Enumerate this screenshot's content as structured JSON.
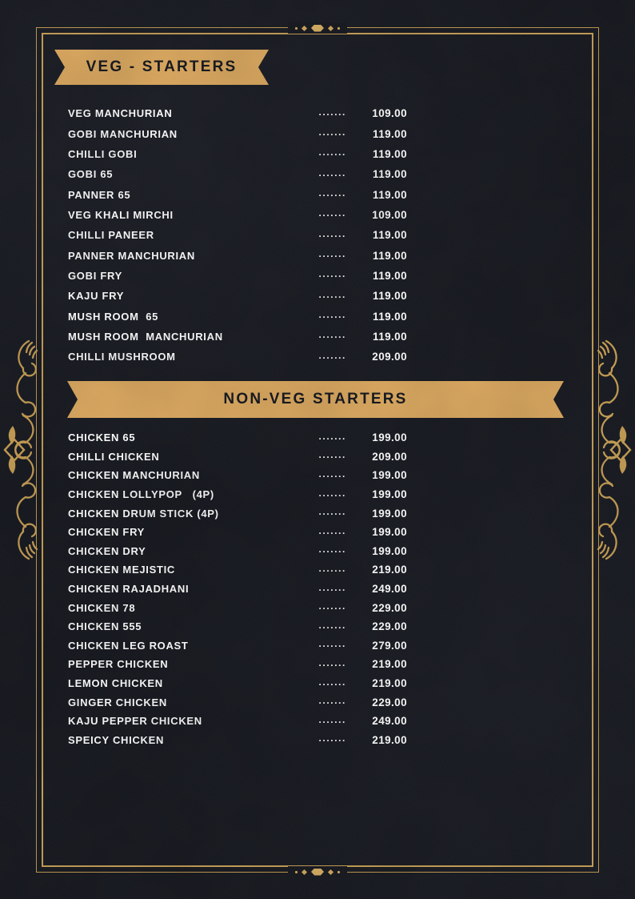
{
  "theme": {
    "background": "#16181f",
    "banner_gold": "#d9a75e",
    "ornament_gold": "#c59d53",
    "item_text_color": "#fdfdfd",
    "banner_text_color": "#15171e"
  },
  "leader_dots": ".......",
  "ornaments": {
    "top_center": "diamond-divider",
    "bottom_center": "diamond-divider",
    "left_side": "scroll-flourish",
    "right_side": "scroll-flourish"
  },
  "sections": [
    {
      "id": "veg-starters",
      "title": "VEG - STARTERS",
      "items": [
        {
          "name": "VEG MANCHURIAN",
          "price": "109.00"
        },
        {
          "name": "GOBI MANCHURIAN",
          "price": "119.00"
        },
        {
          "name": "CHILLI GOBI",
          "price": "119.00"
        },
        {
          "name": "GOBI 65",
          "price": "119.00"
        },
        {
          "name": "PANNER 65",
          "price": "119.00"
        },
        {
          "name": "VEG KHALI MIRCHI",
          "price": "109.00"
        },
        {
          "name": "CHILLI PANEER",
          "price": "119.00"
        },
        {
          "name": "PANNER MANCHURIAN",
          "price": "119.00"
        },
        {
          "name": "GOBI FRY",
          "price": "119.00"
        },
        {
          "name": "KAJU FRY",
          "price": "119.00"
        },
        {
          "name": "MUSH ROOM  65",
          "price": "119.00"
        },
        {
          "name": "MUSH ROOM  MANCHURIAN",
          "price": "119.00"
        },
        {
          "name": "CHILLI MUSHROOM",
          "price": "209.00"
        }
      ]
    },
    {
      "id": "non-veg-starters",
      "title": "NON-VEG STARTERS",
      "items": [
        {
          "name": "CHICKEN 65",
          "price": "199.00"
        },
        {
          "name": "CHILLI CHICKEN",
          "price": "209.00"
        },
        {
          "name": "CHICKEN MANCHURIAN",
          "price": "199.00"
        },
        {
          "name": "CHICKEN LOLLYPOP   (4P)",
          "price": "199.00"
        },
        {
          "name": "CHICKEN DRUM STICK (4P)",
          "price": "199.00"
        },
        {
          "name": "CHICKEN FRY",
          "price": "199.00"
        },
        {
          "name": "CHICKEN DRY",
          "price": "199.00"
        },
        {
          "name": "CHICKEN MEJISTIC",
          "price": "219.00"
        },
        {
          "name": "CHICKEN RAJADHANI",
          "price": "249.00"
        },
        {
          "name": "CHICKEN 78",
          "price": "229.00"
        },
        {
          "name": "CHICKEN 555",
          "price": "229.00"
        },
        {
          "name": "CHICKEN LEG ROAST",
          "price": "279.00"
        },
        {
          "name": "PEPPER CHICKEN",
          "price": "219.00"
        },
        {
          "name": "LEMON CHICKEN",
          "price": "219.00"
        },
        {
          "name": "GINGER CHICKEN",
          "price": "229.00"
        },
        {
          "name": "KAJU PEPPER CHICKEN",
          "price": "249.00"
        },
        {
          "name": "SPEICY CHICKEN",
          "price": "219.00"
        }
      ]
    }
  ]
}
